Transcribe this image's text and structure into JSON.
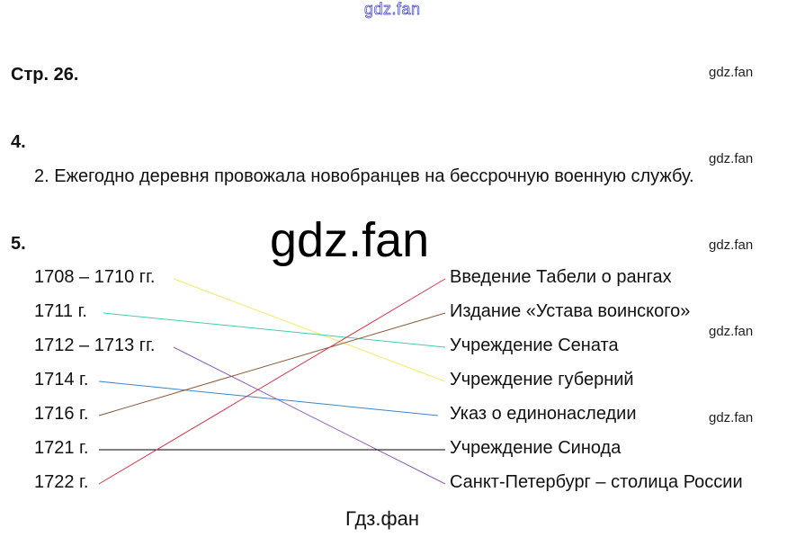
{
  "watermark_top": "gdz.fan",
  "watermark_big": "gdz.fan",
  "watermark_side": [
    "gdz.fan",
    "gdz.fan",
    "gdz.fan",
    "gdz.fan",
    "gdz.fan"
  ],
  "watermark_bottom": "Гдз.фан",
  "page_heading": "Стр. 26.",
  "task4": {
    "number": "4.",
    "answer": "2. Ежегодно деревня провожала новобранцев на бессрочную военную службу."
  },
  "task5": {
    "number": "5.",
    "dates": [
      "1708 – 1710 гг.",
      "1711 г.",
      "1712 – 1713 гг.",
      "1714 г.",
      "1716 г.",
      "1721 г.",
      "1722 г."
    ],
    "events": [
      "Введение Табели о рангах",
      "Издание «Устава воинского»",
      "Учреждение Сената",
      "Учреждение губерний",
      "Указ о единонаследии",
      "Учреждение Синода",
      "Санкт-Петербург – столица России"
    ],
    "matches": [
      {
        "date": 0,
        "event": 3,
        "color": "#f5e86a"
      },
      {
        "date": 1,
        "event": 2,
        "color": "#3fcfb0"
      },
      {
        "date": 2,
        "event": 6,
        "color": "#8a5cc0"
      },
      {
        "date": 3,
        "event": 4,
        "color": "#3a86c8"
      },
      {
        "date": 4,
        "event": 1,
        "color": "#8a5a3a"
      },
      {
        "date": 5,
        "event": 5,
        "color": "#000000"
      },
      {
        "date": 6,
        "event": 0,
        "color": "#d0384a"
      }
    ]
  }
}
